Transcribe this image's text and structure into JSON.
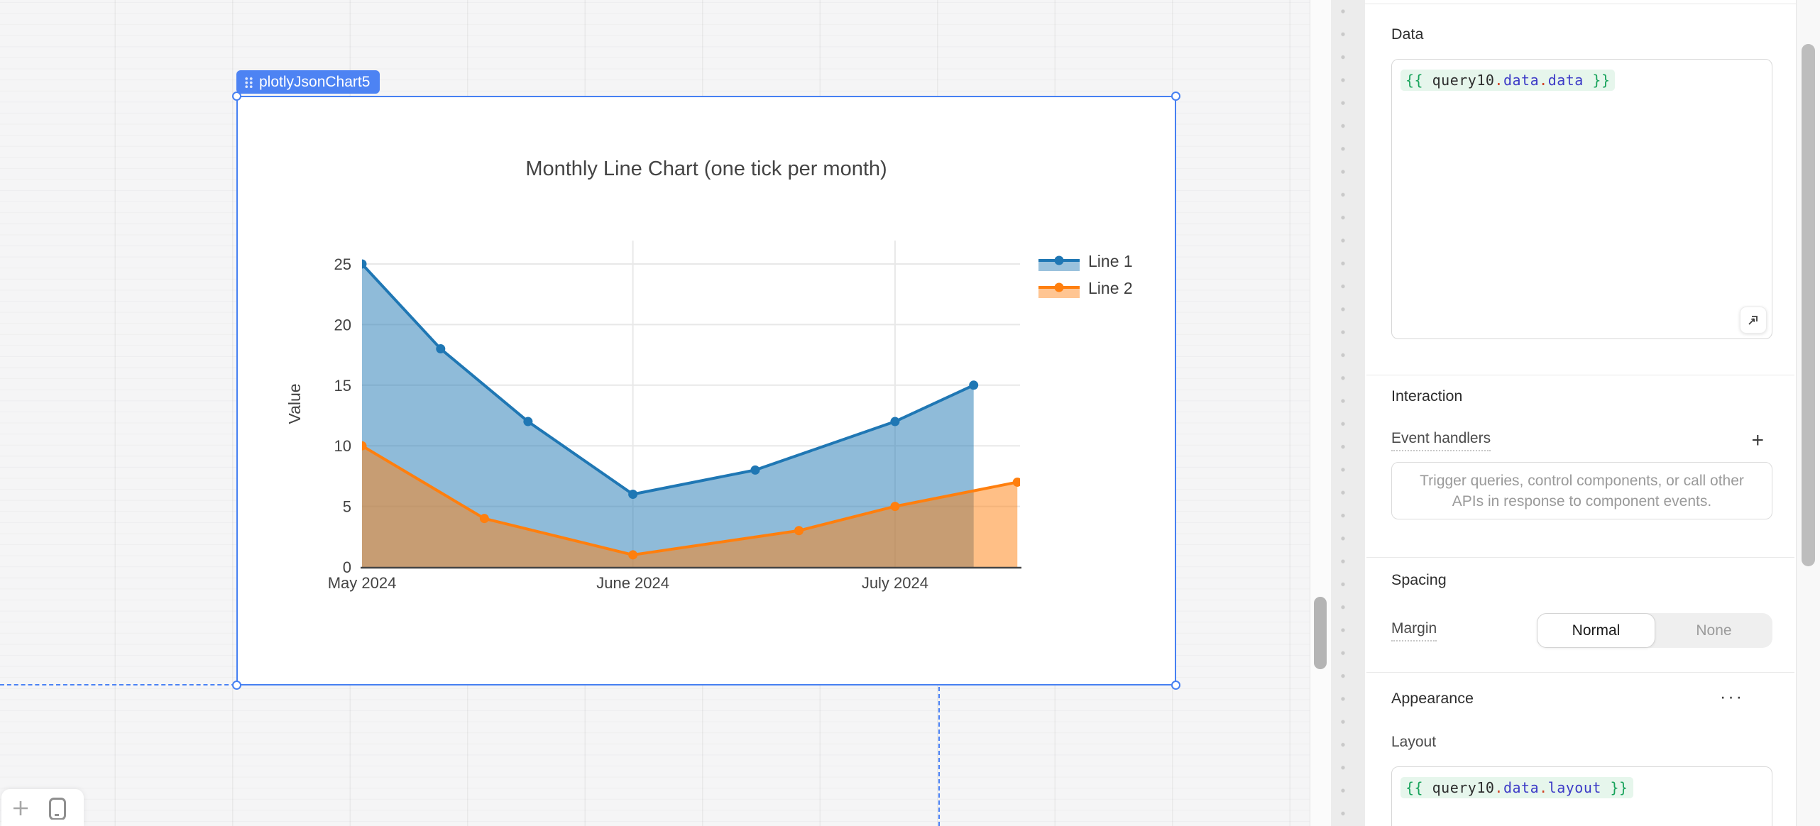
{
  "canvas": {
    "component_label": "plotlyJsonChart5"
  },
  "chart_data": {
    "type": "line",
    "title": "Monthly Line Chart (one tick per month)",
    "xlabel": "",
    "ylabel": "Value",
    "fill": "tozeroy",
    "grid": true,
    "legend_position": "right-outside-top",
    "ylim": [
      0,
      26.9
    ],
    "y_ticks": [
      0,
      5,
      10,
      15,
      20,
      25
    ],
    "x_ticks": [
      {
        "label": "May 2024",
        "date": "2024-05-01",
        "grid": false
      },
      {
        "label": "June 2024",
        "date": "2024-06-01",
        "grid": true
      },
      {
        "label": "July 2024",
        "date": "2024-07-01",
        "grid": true
      }
    ],
    "series": [
      {
        "name": "Line 1",
        "color": "#1f77b4",
        "points": [
          [
            "2024-05-01",
            25
          ],
          [
            "2024-05-10",
            18
          ],
          [
            "2024-05-20",
            12
          ],
          [
            "2024-06-01",
            6
          ],
          [
            "2024-06-15",
            8
          ],
          [
            "2024-07-01",
            12
          ],
          [
            "2024-07-10",
            15
          ]
        ]
      },
      {
        "name": "Line 2",
        "color": "#ff7f0e",
        "points": [
          [
            "2024-05-01",
            10
          ],
          [
            "2024-05-15",
            4
          ],
          [
            "2024-06-01",
            1
          ],
          [
            "2024-06-20",
            3
          ],
          [
            "2024-07-01",
            5
          ],
          [
            "2024-07-15",
            7
          ]
        ]
      }
    ]
  },
  "inspector": {
    "data": {
      "heading": "Data",
      "expr": [
        [
          "{{ ",
          "brace"
        ],
        [
          "query10",
          "ident"
        ],
        [
          ".",
          "dot"
        ],
        [
          "data",
          "prop"
        ],
        [
          ".",
          "dot"
        ],
        [
          "data",
          "prop"
        ],
        [
          " }}",
          "brace"
        ]
      ]
    },
    "interaction": {
      "heading": "Interaction",
      "event_handlers_label": "Event handlers",
      "add_button": "+",
      "placeholder": "Trigger queries, control components, or call other APIs in response to component events."
    },
    "spacing": {
      "heading": "Spacing",
      "margin_label": "Margin",
      "options": [
        "Normal",
        "None"
      ],
      "selected": "Normal"
    },
    "appearance": {
      "heading": "Appearance",
      "menu_button": "···",
      "layout_label": "Layout",
      "expr": [
        [
          "{{ ",
          "brace"
        ],
        [
          "query10",
          "ident"
        ],
        [
          ".",
          "dot"
        ],
        [
          "data",
          "prop"
        ],
        [
          ".",
          "dot"
        ],
        [
          "layout",
          "prop"
        ],
        [
          " }}",
          "brace"
        ]
      ]
    }
  },
  "colors": {
    "selection_blue": "#4680f2",
    "series_blue": "#1f77b4",
    "series_orange": "#ff7f0e",
    "axis_text": "#444444",
    "gridline": "#e8e8e8",
    "token_bg": "#e6f6ec"
  }
}
